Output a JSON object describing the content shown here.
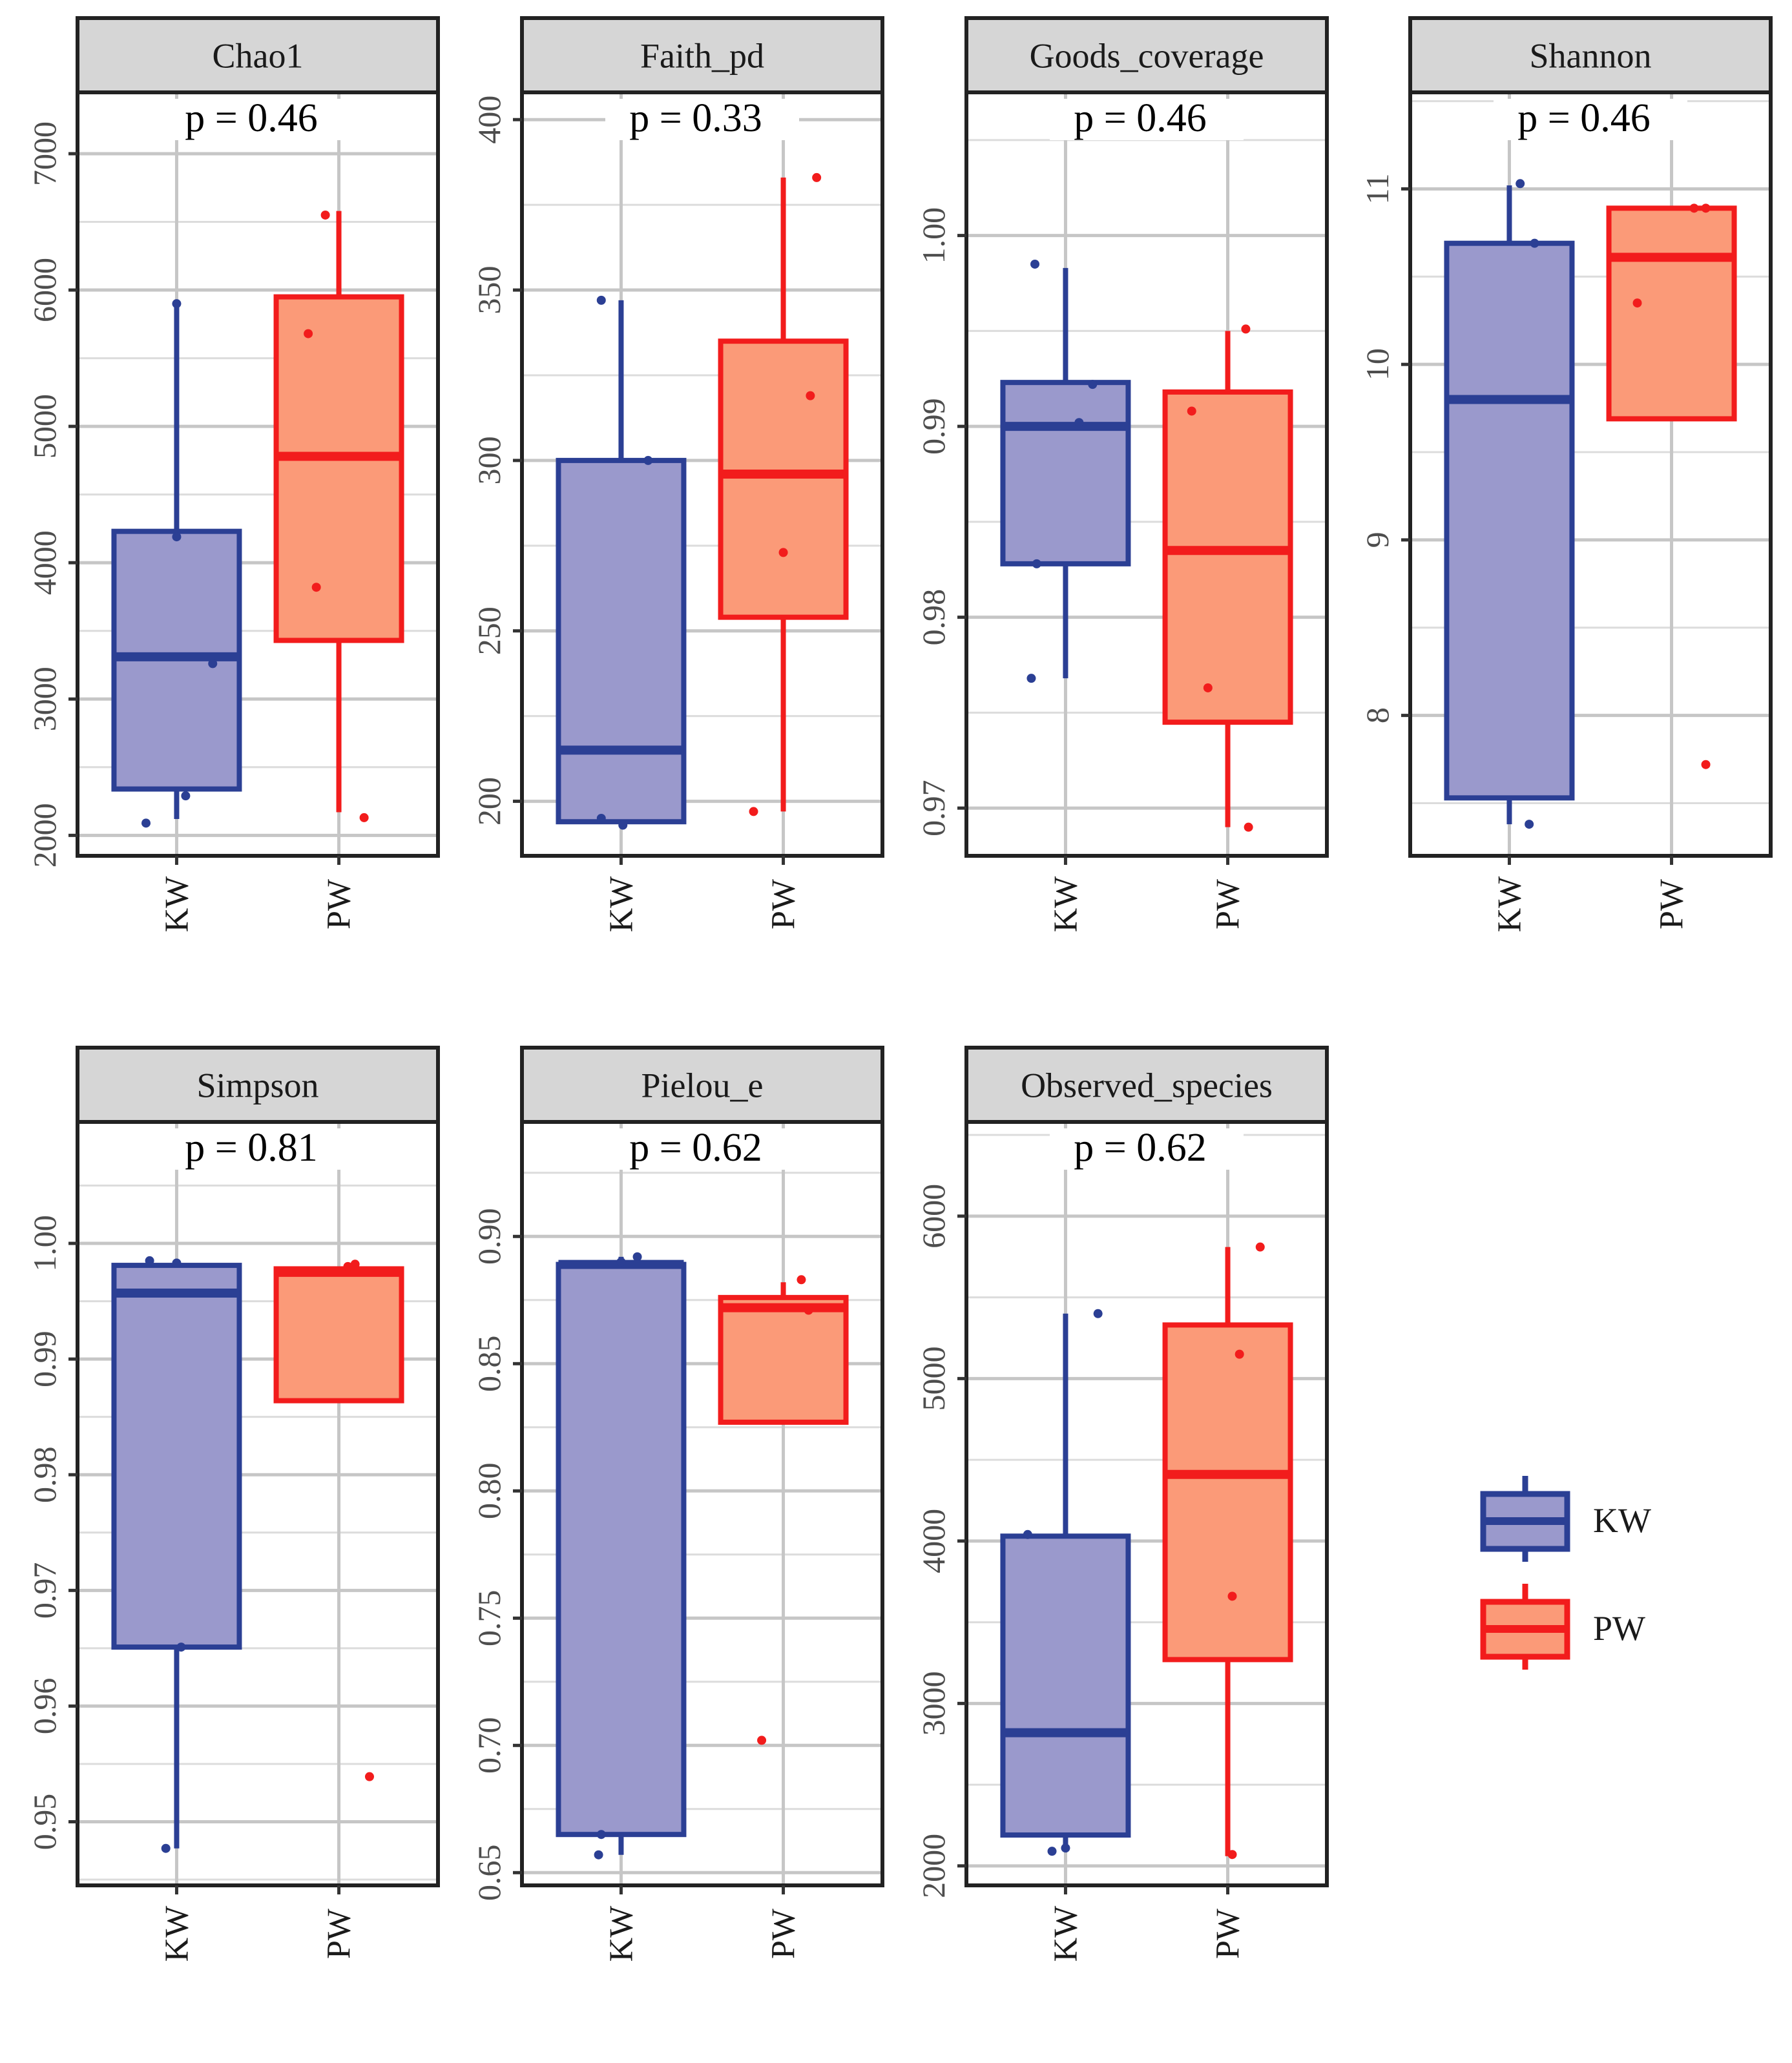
{
  "groups": [
    "KW",
    "PW"
  ],
  "colors": {
    "KW_stroke": "#2b3f94",
    "KW_fill": "#9a99cc",
    "PW_stroke": "#f21c1c",
    "PW_fill": "#fb9a78",
    "grid": "#c6c6c6",
    "strip": "#d6d6d6"
  },
  "legend": {
    "items": [
      {
        "label": "KW"
      },
      {
        "label": "PW"
      }
    ]
  },
  "chart_data": [
    {
      "type": "box",
      "title": "Chao1",
      "p_label": "p = 0.46",
      "ylim": [
        1850,
        7450
      ],
      "yticks": [
        2000,
        3000,
        4000,
        5000,
        6000,
        7000
      ],
      "ytick_labels": [
        "2000",
        "3000",
        "4000",
        "5000",
        "6000",
        "7000"
      ],
      "categories": [
        "KW",
        "PW"
      ],
      "boxes": [
        {
          "group": "KW",
          "whisker_low": 2120,
          "q1": 2340,
          "median": 3310,
          "q3": 4230,
          "whisker_high": 5900
        },
        {
          "group": "PW",
          "whisker_low": 2170,
          "q1": 3430,
          "median": 4780,
          "q3": 5950,
          "whisker_high": 6580
        }
      ],
      "points": [
        {
          "group": "KW",
          "jitter": -0.34,
          "value": 2090
        },
        {
          "group": "KW",
          "jitter": 0.1,
          "value": 2290
        },
        {
          "group": "KW",
          "jitter": 0.0,
          "value": 4190
        },
        {
          "group": "KW",
          "jitter": 0.4,
          "value": 3260
        },
        {
          "group": "KW",
          "jitter": 0.0,
          "value": 5900
        },
        {
          "group": "PW",
          "jitter": -0.34,
          "value": 5680
        },
        {
          "group": "PW",
          "jitter": -0.25,
          "value": 3820
        },
        {
          "group": "PW",
          "jitter": -0.15,
          "value": 6550
        },
        {
          "group": "PW",
          "jitter": 0.28,
          "value": 2130
        }
      ]
    },
    {
      "type": "box",
      "title": "Faith_pd",
      "p_label": "p = 0.33",
      "ylim": [
        184,
        408
      ],
      "yticks": [
        200,
        250,
        300,
        350,
        400
      ],
      "ytick_labels": [
        "200",
        "250",
        "300",
        "350",
        "400"
      ],
      "categories": [
        "KW",
        "PW"
      ],
      "boxes": [
        {
          "group": "KW",
          "whisker_low": 194,
          "q1": 194,
          "median": 215,
          "q3": 300,
          "whisker_high": 347
        },
        {
          "group": "PW",
          "whisker_low": 197,
          "q1": 254,
          "median": 296,
          "q3": 335,
          "whisker_high": 383
        }
      ],
      "points": [
        {
          "group": "KW",
          "jitter": -0.22,
          "value": 347
        },
        {
          "group": "KW",
          "jitter": -0.22,
          "value": 195
        },
        {
          "group": "KW",
          "jitter": 0.02,
          "value": 193
        },
        {
          "group": "KW",
          "jitter": 0.3,
          "value": 300
        },
        {
          "group": "PW",
          "jitter": -0.33,
          "value": 197
        },
        {
          "group": "PW",
          "jitter": 0.0,
          "value": 273
        },
        {
          "group": "PW",
          "jitter": 0.3,
          "value": 319
        },
        {
          "group": "PW",
          "jitter": 0.37,
          "value": 383
        }
      ]
    },
    {
      "type": "box",
      "title": "Goods_coverage",
      "p_label": "p = 0.46",
      "ylim": [
        0.9675,
        1.0075
      ],
      "yticks": [
        0.97,
        0.98,
        0.99,
        1.0
      ],
      "ytick_labels": [
        "0.97",
        "0.98",
        "0.99",
        "1.00"
      ],
      "categories": [
        "KW",
        "PW"
      ],
      "boxes": [
        {
          "group": "KW",
          "whisker_low": 0.9768,
          "q1": 0.9828,
          "median": 0.99,
          "q3": 0.9923,
          "whisker_high": 0.9983
        },
        {
          "group": "PW",
          "whisker_low": 0.969,
          "q1": 0.9745,
          "median": 0.9835,
          "q3": 0.9918,
          "whisker_high": 0.995
        }
      ],
      "points": [
        {
          "group": "KW",
          "jitter": -0.38,
          "value": 0.9768
        },
        {
          "group": "KW",
          "jitter": -0.34,
          "value": 0.9985
        },
        {
          "group": "KW",
          "jitter": -0.32,
          "value": 0.9828
        },
        {
          "group": "KW",
          "jitter": 0.15,
          "value": 0.9902
        },
        {
          "group": "KW",
          "jitter": 0.3,
          "value": 0.9922
        },
        {
          "group": "PW",
          "jitter": -0.4,
          "value": 0.9908
        },
        {
          "group": "PW",
          "jitter": -0.22,
          "value": 0.9763
        },
        {
          "group": "PW",
          "jitter": 0.2,
          "value": 0.9951
        },
        {
          "group": "PW",
          "jitter": 0.23,
          "value": 0.969
        }
      ]
    },
    {
      "type": "box",
      "title": "Shannon",
      "p_label": "p = 0.46",
      "ylim": [
        7.2,
        11.55
      ],
      "yticks": [
        8,
        9,
        10,
        11
      ],
      "ytick_labels": [
        "8",
        "9",
        "10",
        "11"
      ],
      "categories": [
        "KW",
        "PW"
      ],
      "boxes": [
        {
          "group": "KW",
          "whisker_low": 7.38,
          "q1": 7.53,
          "median": 9.8,
          "q3": 10.69,
          "whisker_high": 11.02
        },
        {
          "group": "PW",
          "whisker_low": 9.69,
          "q1": 9.69,
          "median": 10.61,
          "q3": 10.89,
          "whisker_high": 10.89
        }
      ],
      "points": [
        {
          "group": "KW",
          "jitter": 0.22,
          "value": 7.38
        },
        {
          "group": "KW",
          "jitter": 0.12,
          "value": 11.03
        },
        {
          "group": "KW",
          "jitter": 0.28,
          "value": 10.69
        },
        {
          "group": "PW",
          "jitter": -0.38,
          "value": 10.35
        },
        {
          "group": "PW",
          "jitter": 0.25,
          "value": 10.89
        },
        {
          "group": "PW",
          "jitter": 0.38,
          "value": 10.89
        },
        {
          "group": "PW",
          "jitter": 0.38,
          "value": 7.72
        }
      ]
    },
    {
      "type": "box",
      "title": "Simpson",
      "p_label": "p = 0.81",
      "ylim": [
        0.9445,
        1.0105
      ],
      "yticks": [
        0.95,
        0.96,
        0.97,
        0.98,
        0.99,
        1.0
      ],
      "ytick_labels": [
        "0.95",
        "0.96",
        "0.97",
        "0.98",
        "0.99",
        "1.00"
      ],
      "categories": [
        "KW",
        "PW"
      ],
      "boxes": [
        {
          "group": "KW",
          "whisker_low": 0.9477,
          "q1": 0.9651,
          "median": 0.9957,
          "q3": 0.9981,
          "whisker_high": 0.9985
        },
        {
          "group": "PW",
          "whisker_low": 0.9864,
          "q1": 0.9864,
          "median": 0.9975,
          "q3": 0.9978,
          "whisker_high": 0.9978
        }
      ],
      "points": [
        {
          "group": "KW",
          "jitter": -0.3,
          "value": 0.9985
        },
        {
          "group": "KW",
          "jitter": -0.12,
          "value": 0.9477
        },
        {
          "group": "KW",
          "jitter": 0.05,
          "value": 0.9651
        },
        {
          "group": "KW",
          "jitter": 0.0,
          "value": 0.9983
        },
        {
          "group": "PW",
          "jitter": 0.1,
          "value": 0.998
        },
        {
          "group": "PW",
          "jitter": 0.18,
          "value": 0.9982
        },
        {
          "group": "PW",
          "jitter": 0.34,
          "value": 0.9539
        }
      ]
    },
    {
      "type": "box",
      "title": "Pielou_e",
      "p_label": "p = 0.62",
      "ylim": [
        0.645,
        0.945
      ],
      "yticks": [
        0.65,
        0.7,
        0.75,
        0.8,
        0.85,
        0.9
      ],
      "ytick_labels": [
        "0.65",
        "0.70",
        "0.75",
        "0.80",
        "0.85",
        "0.90"
      ],
      "categories": [
        "KW",
        "PW"
      ],
      "boxes": [
        {
          "group": "KW",
          "whisker_low": 0.657,
          "q1": 0.665,
          "median": 0.889,
          "q3": 0.889,
          "whisker_high": 0.892
        },
        {
          "group": "PW",
          "whisker_low": 0.827,
          "q1": 0.827,
          "median": 0.872,
          "q3": 0.876,
          "whisker_high": 0.882
        }
      ],
      "points": [
        {
          "group": "KW",
          "jitter": -0.25,
          "value": 0.657
        },
        {
          "group": "KW",
          "jitter": -0.22,
          "value": 0.665
        },
        {
          "group": "KW",
          "jitter": 0.0,
          "value": 0.89
        },
        {
          "group": "KW",
          "jitter": 0.18,
          "value": 0.892
        },
        {
          "group": "PW",
          "jitter": -0.24,
          "value": 0.702
        },
        {
          "group": "PW",
          "jitter": 0.2,
          "value": 0.883
        },
        {
          "group": "PW",
          "jitter": 0.28,
          "value": 0.871
        }
      ]
    },
    {
      "type": "box",
      "title": "Observed_species",
      "p_label": "p = 0.62",
      "ylim": [
        1880,
        6580
      ],
      "yticks": [
        2000,
        3000,
        4000,
        5000,
        6000
      ],
      "ytick_labels": [
        "2000",
        "3000",
        "4000",
        "5000",
        "6000"
      ],
      "categories": [
        "KW",
        "PW"
      ],
      "boxes": [
        {
          "group": "KW",
          "whisker_low": 2110,
          "q1": 2190,
          "median": 2820,
          "q3": 4030,
          "whisker_high": 5400
        },
        {
          "group": "PW",
          "whisker_low": 2060,
          "q1": 3270,
          "median": 4410,
          "q3": 5330,
          "whisker_high": 5810
        }
      ],
      "points": [
        {
          "group": "KW",
          "jitter": -0.42,
          "value": 4040
        },
        {
          "group": "KW",
          "jitter": -0.15,
          "value": 2090
        },
        {
          "group": "KW",
          "jitter": 0.36,
          "value": 5400
        },
        {
          "group": "KW",
          "jitter": 0.0,
          "value": 2110
        },
        {
          "group": "PW",
          "jitter": 0.05,
          "value": 2070
        },
        {
          "group": "PW",
          "jitter": 0.05,
          "value": 3660
        },
        {
          "group": "PW",
          "jitter": 0.13,
          "value": 5150
        },
        {
          "group": "PW",
          "jitter": 0.36,
          "value": 5810
        }
      ]
    }
  ]
}
